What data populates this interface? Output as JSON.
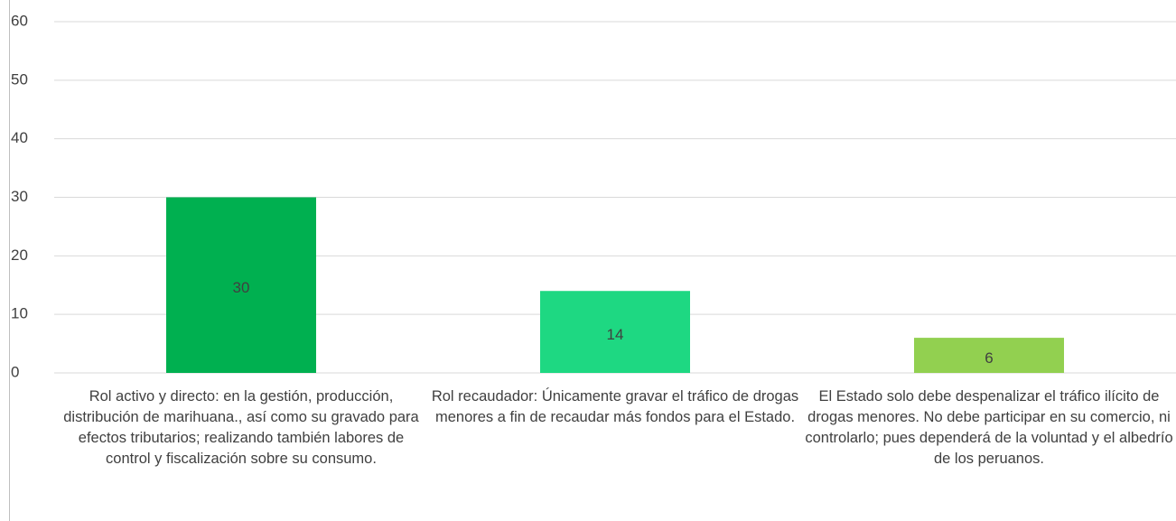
{
  "chart_data": {
    "type": "bar",
    "categories": [
      "Rol activo y directo: en la gestión, producción, distribución de marihuana., así como su gravado para efectos tributarios; realizando también labores de control y fiscalización sobre su consumo.",
      "Rol recaudador: Únicamente gravar el tráfico de drogas menores a fin de recaudar más fondos para el Estado.",
      "El Estado solo debe despenalizar el tráfico ilícito de drogas menores. No debe participar en su comercio, ni controlarlo; pues dependerá de la voluntad y el albedrío de los peruanos."
    ],
    "values": [
      30,
      14,
      6
    ],
    "colors": [
      "#00b050",
      "#1ed882",
      "#92d050"
    ],
    "ylim": [
      0,
      60
    ],
    "yticks": [
      0,
      10,
      20,
      30,
      40,
      50,
      60
    ],
    "grid": true
  }
}
